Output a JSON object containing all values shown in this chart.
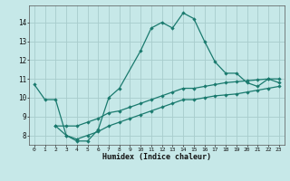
{
  "title": "",
  "xlabel": "Humidex (Indice chaleur)",
  "ylabel": "",
  "bg_color": "#c6e8e8",
  "grid_color": "#a8cccc",
  "line_color": "#1a7a6e",
  "xlim": [
    -0.5,
    23.5
  ],
  "ylim": [
    7.5,
    14.9
  ],
  "xticks": [
    0,
    1,
    2,
    3,
    4,
    5,
    6,
    7,
    8,
    9,
    10,
    11,
    12,
    13,
    14,
    15,
    16,
    17,
    18,
    19,
    20,
    21,
    22,
    23
  ],
  "yticks": [
    8,
    9,
    10,
    11,
    12,
    13,
    14
  ],
  "line1_x": [
    0,
    1,
    2,
    3,
    4,
    5,
    6,
    7,
    8,
    10,
    11,
    12,
    13,
    14,
    15,
    16,
    17,
    18,
    19,
    20,
    21,
    22,
    23
  ],
  "line1_y": [
    10.7,
    9.9,
    9.9,
    8.0,
    7.7,
    7.7,
    8.3,
    10.0,
    10.5,
    12.5,
    13.7,
    14.0,
    13.7,
    14.5,
    14.2,
    13.0,
    11.9,
    11.3,
    11.3,
    10.8,
    10.6,
    11.0,
    10.8
  ],
  "line2_x": [
    2,
    3,
    4,
    5,
    6,
    7,
    8,
    9,
    10,
    11,
    12,
    13,
    14,
    15,
    16,
    17,
    18,
    19,
    20,
    21,
    22,
    23
  ],
  "line2_y": [
    8.5,
    8.5,
    8.5,
    8.7,
    8.9,
    9.2,
    9.3,
    9.5,
    9.7,
    9.9,
    10.1,
    10.3,
    10.5,
    10.5,
    10.6,
    10.7,
    10.8,
    10.85,
    10.9,
    10.95,
    11.0,
    11.0
  ],
  "line3_x": [
    2,
    3,
    4,
    5,
    6,
    7,
    8,
    9,
    10,
    11,
    12,
    13,
    14,
    15,
    16,
    17,
    18,
    19,
    20,
    21,
    22,
    23
  ],
  "line3_y": [
    8.5,
    8.0,
    7.8,
    8.0,
    8.2,
    8.5,
    8.7,
    8.9,
    9.1,
    9.3,
    9.5,
    9.7,
    9.9,
    9.9,
    10.0,
    10.1,
    10.15,
    10.2,
    10.3,
    10.4,
    10.5,
    10.6
  ],
  "markersize": 2.2,
  "linewidth": 0.9
}
